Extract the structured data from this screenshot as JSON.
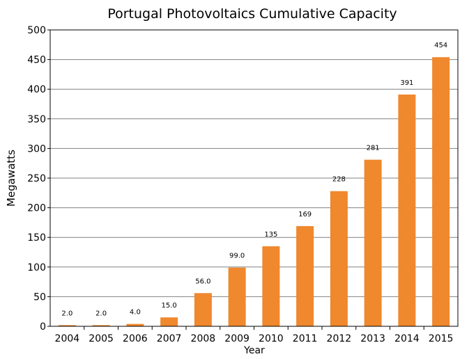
{
  "chart_data": {
    "type": "bar",
    "title": "Portugal Photovoltaics Cumulative Capacity",
    "xlabel": "Year",
    "ylabel": "Megawatts",
    "categories": [
      "2004",
      "2005",
      "2006",
      "2007",
      "2008",
      "2009",
      "2010",
      "2011",
      "2012",
      "2013",
      "2014",
      "2015"
    ],
    "values": [
      2.0,
      2.0,
      4.0,
      15.0,
      56.0,
      99.0,
      135,
      169,
      228,
      281,
      391,
      454
    ],
    "data_labels": [
      "2.0",
      "2.0",
      "4.0",
      "15.0",
      "56.0",
      "99.0",
      "135",
      "169",
      "228",
      "281",
      "391",
      "454"
    ],
    "ylim": [
      0,
      500
    ],
    "yticks": [
      0,
      50,
      100,
      150,
      200,
      250,
      300,
      350,
      400,
      450,
      500
    ],
    "grid": true,
    "bar_color": "#f0882d",
    "grid_color": "#808080"
  }
}
